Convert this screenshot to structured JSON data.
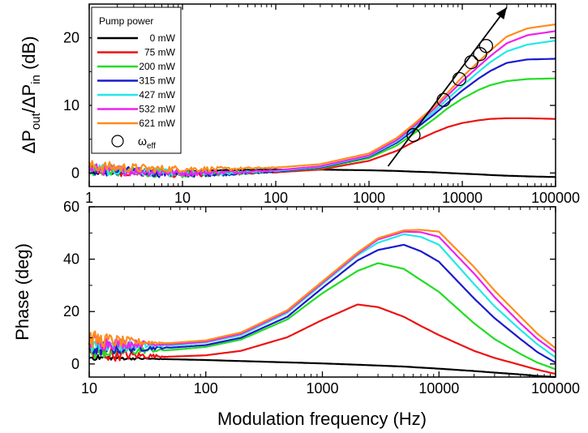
{
  "chart_data": [
    {
      "type": "line",
      "panel": "top",
      "x_scale": "log",
      "xlim": [
        1,
        100000
      ],
      "ylim": [
        -2,
        25
      ],
      "xticks": [
        "1",
        "10",
        "100",
        "1000",
        "10000",
        "100000"
      ],
      "yticks": [
        "0",
        "10",
        "20"
      ],
      "ylabel_parts": {
        "main": "ΔP",
        "sub1": "out",
        "mid": "/ΔP",
        "sub2": "in",
        "tail": " (dB)"
      },
      "legend_title": "Pump power",
      "legend_placement": "top-left",
      "x_grid": [
        1,
        2,
        5,
        10,
        30,
        100,
        300,
        1000,
        2000,
        3000,
        5000,
        7000,
        10000,
        15000,
        20000,
        30000,
        50000,
        100000
      ],
      "series": [
        {
          "name": "0 mW",
          "color": "#000000",
          "values": [
            0,
            0,
            0,
            0.2,
            0.4,
            0.5,
            0.5,
            0.4,
            0.3,
            0.2,
            0.1,
            0,
            -0.1,
            -0.2,
            -0.3,
            -0.4,
            -0.5,
            -0.6
          ]
        },
        {
          "name": "75 mW",
          "color": "#ee1111",
          "values": [
            0.5,
            0.3,
            0,
            -0.2,
            -0.1,
            0.1,
            0.5,
            1.8,
            3.3,
            4.6,
            6.0,
            6.8,
            7.4,
            7.8,
            8.0,
            8.1,
            8.1,
            8.0
          ]
        },
        {
          "name": "200 mW",
          "color": "#22dd22",
          "values": [
            0.5,
            0.3,
            0,
            -0.2,
            -0.1,
            0.2,
            0.7,
            2.2,
            4.1,
            5.8,
            8.0,
            9.6,
            11.0,
            12.3,
            13.0,
            13.6,
            13.9,
            14.0
          ]
        },
        {
          "name": "315 mW",
          "color": "#1a1acc",
          "values": [
            0.5,
            0.3,
            0,
            -0.2,
            -0.1,
            0.2,
            0.8,
            2.4,
            4.5,
            6.3,
            8.7,
            10.4,
            12.2,
            14.0,
            15.1,
            16.3,
            16.8,
            16.9
          ]
        },
        {
          "name": "427 mW",
          "color": "#22e8e8",
          "values": [
            0.6,
            0.4,
            0.1,
            -0.1,
            0,
            0.3,
            0.9,
            2.5,
            4.7,
            6.6,
            9.1,
            11.0,
            12.9,
            15.0,
            16.4,
            18.0,
            19.0,
            19.6
          ]
        },
        {
          "name": "532 mW",
          "color": "#ee22ee",
          "values": [
            0.6,
            0.4,
            0.2,
            0,
            0.1,
            0.4,
            1.0,
            2.6,
            4.9,
            6.9,
            9.5,
            11.5,
            13.6,
            15.8,
            17.3,
            19.2,
            20.4,
            21.0
          ]
        },
        {
          "name": "621 mW",
          "color": "#ff8c1a",
          "values": [
            1.0,
            0.8,
            0.6,
            0.6,
            0.6,
            0.8,
            1.3,
            2.9,
            5.2,
            7.2,
            9.8,
            11.9,
            14.2,
            16.5,
            18.1,
            20.2,
            21.4,
            22.0
          ]
        }
      ],
      "omega_eff_label": "ω",
      "omega_eff_sub": "eff",
      "omega_eff": {
        "x": [
          3000,
          6300,
          9300,
          12500,
          15500,
          18000
        ],
        "y": [
          5.6,
          10.8,
          13.9,
          16.4,
          17.6,
          18.8
        ]
      },
      "arrow": {
        "from": [
          1600,
          1.0
        ],
        "to": [
          30000,
          24.5
        ]
      }
    },
    {
      "type": "line",
      "panel": "bottom",
      "x_scale": "log",
      "xlim": [
        10,
        100000
      ],
      "ylim": [
        -5,
        60
      ],
      "xticks": [
        "10",
        "100",
        "1000",
        "10000",
        "100000"
      ],
      "yticks": [
        "0",
        "20",
        "40",
        "60"
      ],
      "ylabel": "Phase (deg)",
      "xlabel": "Modulation frequency (Hz)",
      "x_grid": [
        10,
        20,
        50,
        100,
        200,
        500,
        1000,
        2000,
        3000,
        5000,
        7000,
        10000,
        20000,
        30000,
        50000,
        70000,
        100000
      ],
      "series": [
        {
          "name": "0 mW",
          "color": "#000000",
          "values": [
            2.5,
            2.2,
            1.8,
            1.5,
            1.1,
            0.6,
            0.2,
            -0.3,
            -0.6,
            -1.0,
            -1.4,
            -1.8,
            -2.7,
            -3.3,
            -4.0,
            -4.6,
            -5.0
          ]
        },
        {
          "name": "75 mW",
          "color": "#ee1111",
          "values": [
            4.0,
            3.4,
            2.8,
            3.3,
            5.0,
            10.2,
            16.8,
            22.7,
            21.7,
            18.0,
            14.5,
            11.0,
            5.0,
            2.3,
            -0.4,
            -2.2,
            -3.8
          ]
        },
        {
          "name": "200 mW",
          "color": "#22dd22",
          "values": [
            5.0,
            5.0,
            5.3,
            6.5,
            9.3,
            17.0,
            27.0,
            35.5,
            38.5,
            36.3,
            32.0,
            27.5,
            15.5,
            9.5,
            3.8,
            0.5,
            -2.0
          ]
        },
        {
          "name": "315 mW",
          "color": "#1a1acc",
          "values": [
            6.0,
            6.0,
            6.2,
            7.2,
            10.0,
            18.0,
            29.0,
            39.5,
            43.5,
            45.5,
            43.0,
            39.0,
            25.0,
            17.5,
            9.5,
            4.5,
            0.5
          ]
        },
        {
          "name": "427 mW",
          "color": "#22e8e8",
          "values": [
            8.0,
            7.0,
            7.0,
            8.2,
            11.0,
            19.5,
            30.5,
            41.5,
            46.3,
            49.5,
            48.5,
            45.5,
            30.5,
            22.0,
            13.0,
            7.5,
            2.5
          ]
        },
        {
          "name": "532 mW",
          "color": "#ee22ee",
          "values": [
            8.5,
            7.8,
            7.5,
            8.5,
            11.5,
            20.0,
            31.0,
            42.0,
            47.5,
            50.5,
            50.3,
            48.5,
            34.5,
            25.5,
            15.5,
            9.5,
            4.5
          ]
        },
        {
          "name": "621 mW",
          "color": "#ff8c1a",
          "values": [
            9.5,
            8.5,
            8.0,
            9.0,
            12.0,
            20.5,
            31.5,
            42.5,
            48.0,
            51.0,
            51.2,
            50.5,
            37.0,
            28.0,
            18.0,
            11.5,
            6.0
          ]
        }
      ]
    }
  ]
}
